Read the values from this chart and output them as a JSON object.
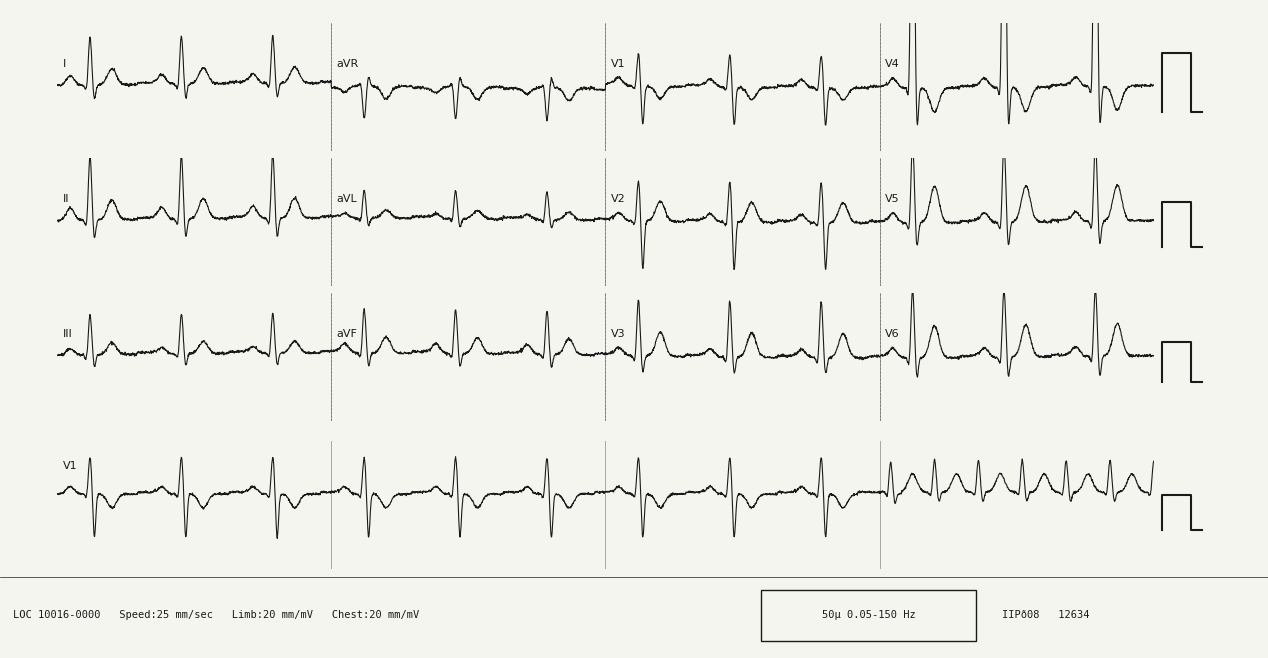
{
  "bg_color": "#f5f5f0",
  "line_color": "#1a1a1a",
  "title": "",
  "bottom_text": "LOC 10016-0000   Speed:25 mm/sec   Limb:20 mm/mV   Chest:20 mm/mV",
  "box_text": "50μ 0.05-150 Hz",
  "right_text": "IIPð08   12634",
  "row_labels": [
    "I",
    "II",
    "III",
    "V1"
  ],
  "col_labels": [
    "aVR",
    "V1",
    "V4",
    "aVL",
    "V2",
    "V5",
    "aVF",
    "V3",
    "V6"
  ],
  "figsize": [
    12.68,
    6.58
  ],
  "dpi": 100
}
